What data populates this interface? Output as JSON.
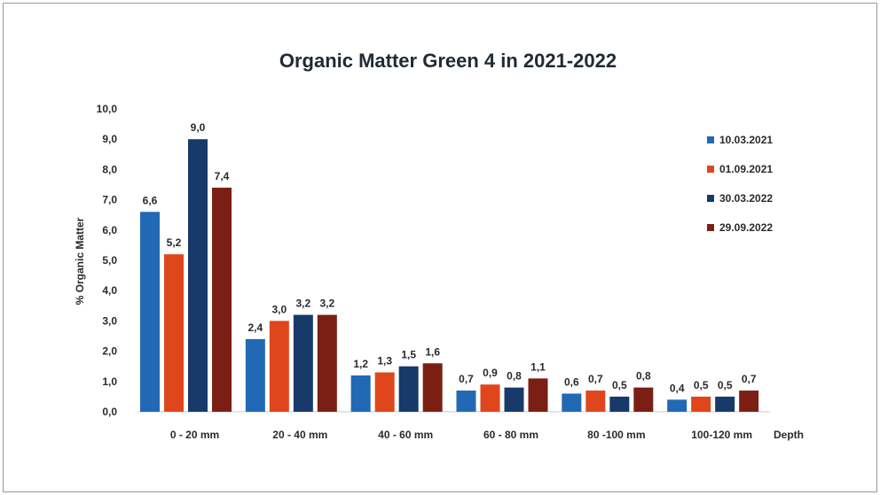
{
  "chart_data": {
    "type": "bar",
    "title": "Organic Matter Green 4 in 2021-2022",
    "xlabel": "Depth",
    "ylabel": "% Organic Matter",
    "ylim": [
      0,
      10
    ],
    "ytick_step": 1,
    "ytick_labels": [
      "0,0",
      "1,0",
      "2,0",
      "3,0",
      "4,0",
      "5,0",
      "6,0",
      "7,0",
      "8,0",
      "9,0",
      "10,0"
    ],
    "grid": false,
    "legend_position": "right",
    "categories": [
      "0  - 20 mm",
      "20 - 40 mm",
      "40 - 60 mm",
      "60 - 80 mm",
      "80 -100 mm",
      "100-120 mm"
    ],
    "series": [
      {
        "name": "10.03.2021",
        "color": "#2169b5",
        "values": [
          6.6,
          2.4,
          1.2,
          0.7,
          0.6,
          0.4
        ],
        "labels": [
          "6,6",
          "2,4",
          "1,2",
          "0,7",
          "0,6",
          "0,4"
        ]
      },
      {
        "name": "01.09.2021",
        "color": "#e0461b",
        "values": [
          5.2,
          3.0,
          1.3,
          0.9,
          0.7,
          0.5
        ],
        "labels": [
          "5,2",
          "3,0",
          "1,3",
          "0,9",
          "0,7",
          "0,5"
        ]
      },
      {
        "name": "30.03.2022",
        "color": "#173a6b",
        "values": [
          9.0,
          3.2,
          1.5,
          0.8,
          0.5,
          0.5
        ],
        "labels": [
          "9,0",
          "3,2",
          "1,5",
          "0,8",
          "0,5",
          "0,5"
        ]
      },
      {
        "name": "29.09.2022",
        "color": "#7b1f14",
        "values": [
          7.4,
          3.2,
          1.6,
          1.1,
          0.8,
          0.7
        ],
        "labels": [
          "7,4",
          "3,2",
          "1,6",
          "1,1",
          "0,8",
          "0,7"
        ]
      }
    ]
  }
}
